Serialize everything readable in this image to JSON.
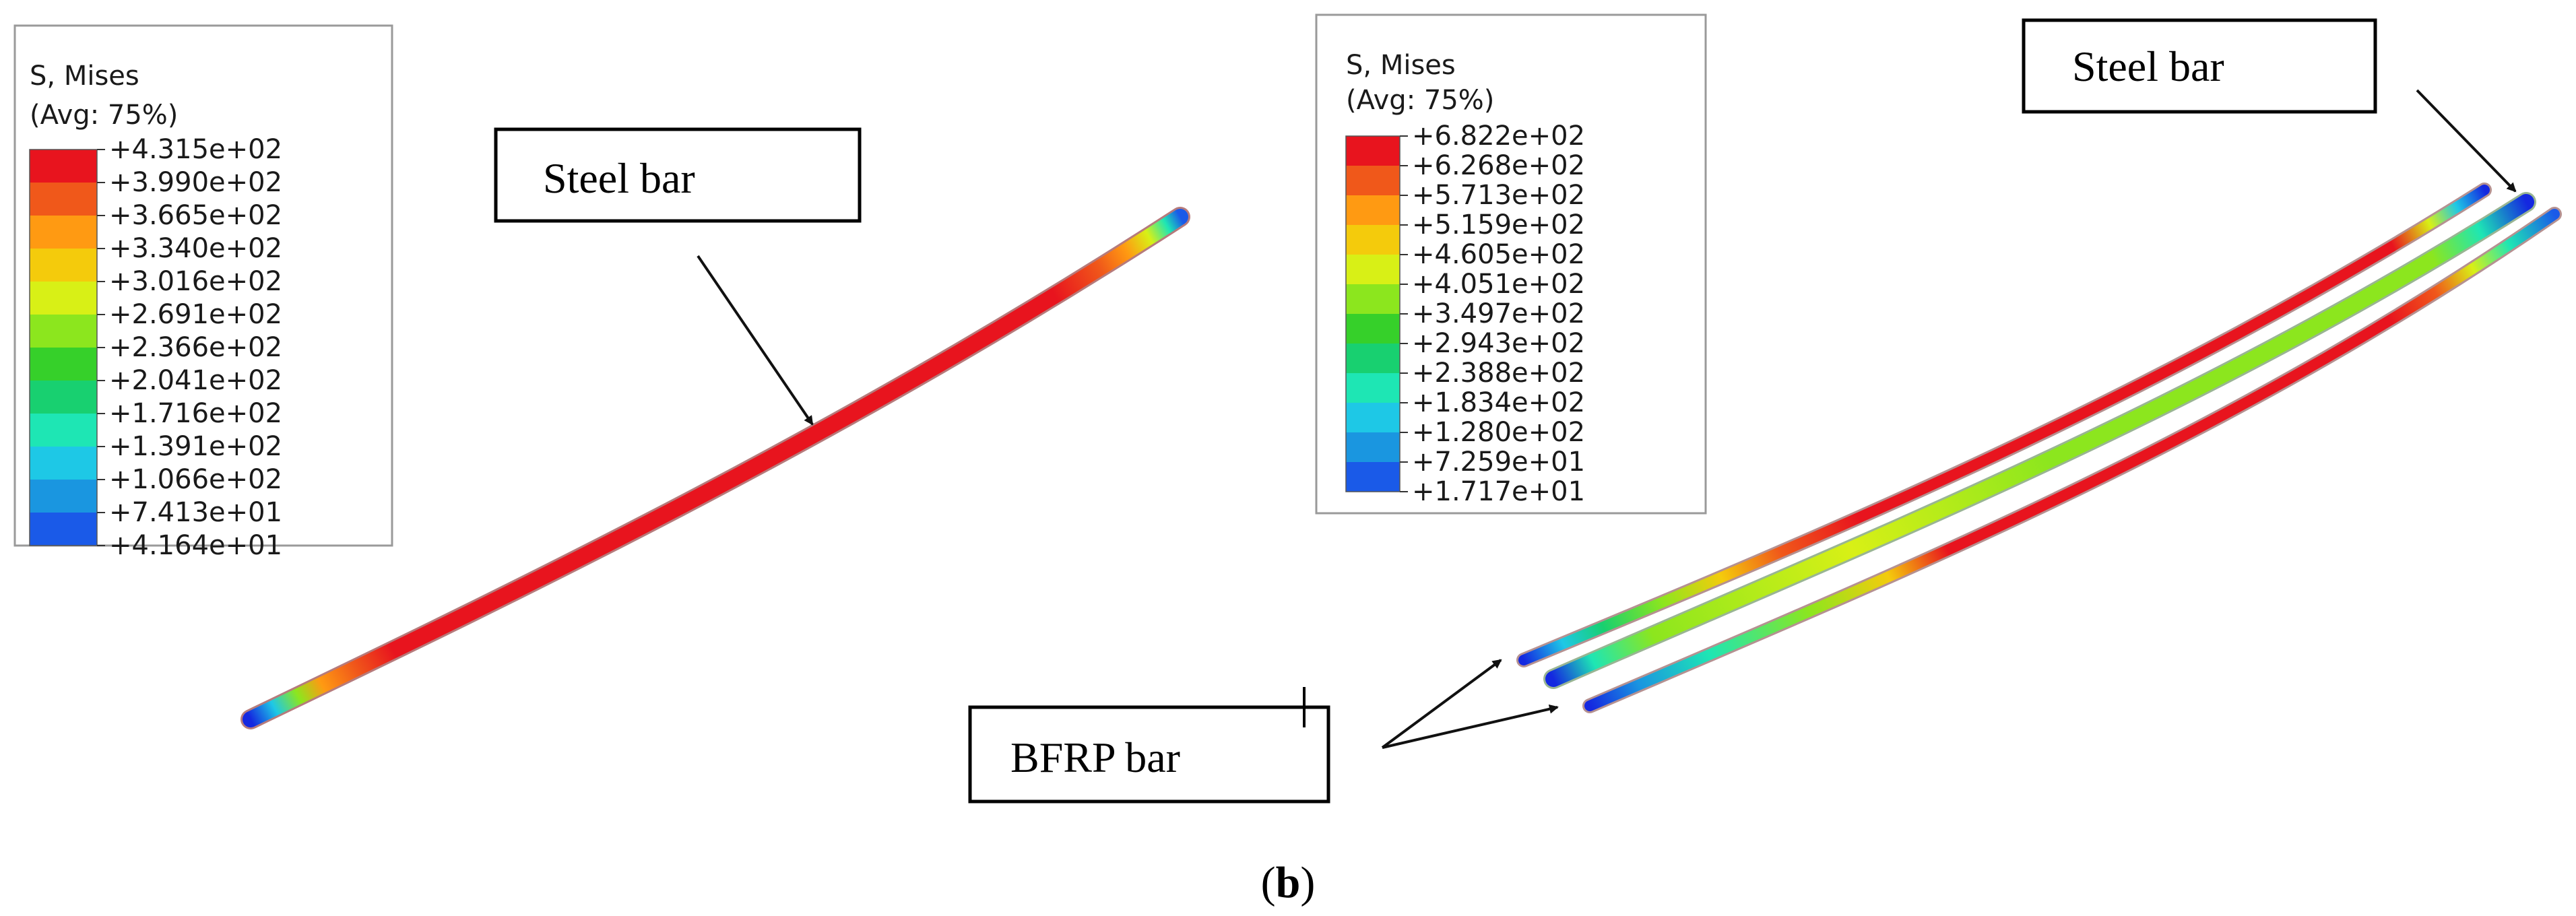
{
  "left_legend": {
    "title_line1": "S, Mises",
    "title_line2": "(Avg: 75%)",
    "values": [
      "+4.315e+02",
      "+3.990e+02",
      "+3.665e+02",
      "+3.340e+02",
      "+3.016e+02",
      "+2.691e+02",
      "+2.366e+02",
      "+2.041e+02",
      "+1.716e+02",
      "+1.391e+02",
      "+1.066e+02",
      "+7.413e+01",
      "+4.164e+01"
    ]
  },
  "right_legend": {
    "title_line1": "S, Mises",
    "title_line2": "(Avg: 75%)",
    "values": [
      "+6.822e+02",
      "+6.268e+02",
      "+5.713e+02",
      "+5.159e+02",
      "+4.605e+02",
      "+4.051e+02",
      "+3.497e+02",
      "+2.943e+02",
      "+2.388e+02",
      "+1.834e+02",
      "+1.280e+02",
      "+7.259e+01",
      "+1.717e+01"
    ]
  },
  "colors": [
    "#e8141e",
    "#f0581a",
    "#ff9a12",
    "#f4cb0c",
    "#d8f016",
    "#8ce61e",
    "#36d02a",
    "#18d070",
    "#1ee6b4",
    "#1ec8e6",
    "#1a96e0",
    "#1a5ae8",
    "#1428e0"
  ],
  "labels": {
    "left_steel": "Steel bar",
    "right_steel": "Steel bar",
    "bfrp": "BFRP bar"
  },
  "caption": {
    "open": "(",
    "letter": "b",
    "close": ")"
  }
}
